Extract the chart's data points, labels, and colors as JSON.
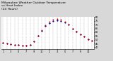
{
  "title": "Milwaukee Weather Outdoor Temperature\nvs Heat Index\n(24 Hours)",
  "title_fontsize": 3.2,
  "bg_color": "#d8d8d8",
  "plot_bg": "#ffffff",
  "hours": [
    1,
    2,
    3,
    4,
    5,
    6,
    7,
    8,
    9,
    10,
    11,
    12,
    13,
    14,
    15,
    16,
    17,
    18,
    19,
    20,
    21,
    22,
    23,
    24
  ],
  "temp": [
    46,
    45,
    44,
    43,
    43,
    42,
    42,
    43,
    48,
    55,
    62,
    68,
    72,
    75,
    76,
    75,
    73,
    70,
    65,
    61,
    57,
    54,
    51,
    49
  ],
  "heat_index": [
    46,
    45,
    44,
    43,
    43,
    42,
    42,
    43,
    48,
    55,
    63,
    69,
    74,
    77,
    78,
    77,
    74,
    70,
    65,
    61,
    57,
    54,
    51,
    49
  ],
  "black_dots": [
    46,
    45,
    44,
    43,
    43,
    42,
    42,
    43,
    48,
    55,
    62,
    68,
    72,
    75,
    76,
    75,
    73,
    70,
    65,
    61,
    57,
    54,
    51,
    49
  ],
  "temp_color": "#0000cc",
  "heat_color": "#cc0000",
  "black_color": "#000000",
  "ylim_min": 38,
  "ylim_max": 80,
  "yticks": [
    40,
    45,
    50,
    55,
    60,
    65,
    70,
    75,
    80
  ],
  "ytick_labels": [
    "40",
    "45",
    "50",
    "55",
    "60",
    "65",
    "70",
    "75",
    "80"
  ],
  "xtick_positions": [
    1,
    3,
    5,
    7,
    9,
    11,
    13,
    15,
    17,
    19,
    21,
    23
  ],
  "xtick_labels": [
    "1",
    "3",
    "5",
    "7",
    "9",
    "11",
    "1",
    "3",
    "5",
    "7",
    "9",
    "11"
  ],
  "grid_color": "#aaaaaa",
  "grid_style": "--",
  "grid_lw": 0.3,
  "dot_size": 2.0,
  "legend_blue": "#0000cc",
  "legend_red": "#cc0000"
}
